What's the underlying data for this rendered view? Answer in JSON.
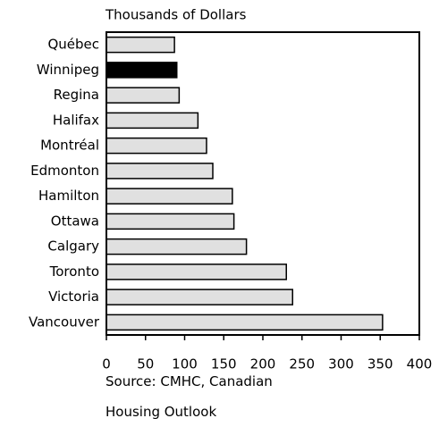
{
  "chart_data": {
    "type": "bar",
    "orientation": "horizontal",
    "title": "Thousands of Dollars",
    "source": "Source: CMHC, Canadian Housing Outlook",
    "categories": [
      "Québec",
      "Winnipeg",
      "Regina",
      "Halifax",
      "Montréal",
      "Edmonton",
      "Hamilton",
      "Ottawa",
      "Calgary",
      "Toronto",
      "Victoria",
      "Vancouver"
    ],
    "values": [
      87,
      90,
      93,
      117,
      128,
      136,
      161,
      163,
      179,
      230,
      238,
      353
    ],
    "colors": [
      "#e0e0e0",
      "#000000",
      "#e0e0e0",
      "#e0e0e0",
      "#e0e0e0",
      "#e0e0e0",
      "#e0e0e0",
      "#e0e0e0",
      "#e0e0e0",
      "#e0e0e0",
      "#e0e0e0",
      "#e0e0e0"
    ],
    "xlim": [
      0,
      400
    ],
    "xticks": [
      0,
      50,
      100,
      150,
      200,
      250,
      300,
      350,
      400
    ],
    "grid": false
  }
}
